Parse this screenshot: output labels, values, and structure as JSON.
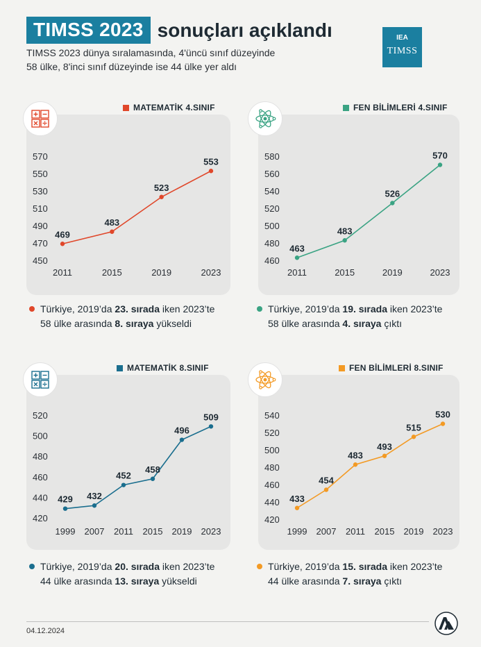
{
  "header": {
    "title_highlight": "TIMSS 2023",
    "title_rest": "sonuçları açıklandı",
    "subtitle_line1": "TIMSS 2023 dünya sıralamasında, 4'üncü sınıf düzeyinde",
    "subtitle_line2": "58 ülke, 8'inci sınıf düzeyinde ise 44 ülke yer aldı",
    "logo_top": "IEA",
    "logo_bottom": "TIMSS"
  },
  "footer": {
    "date": "04.12.2024"
  },
  "panels": [
    {
      "legend": "MATEMATİK 4.SINIF",
      "color": "#e0472a",
      "icon": "math-icon",
      "note": {
        "pre": "Türkiye, 2019’da ",
        "b1": "23. sırada",
        "mid": " iken 2023’te 58 ülke arasında ",
        "b2": "8. sıraya",
        "post": " yükseldi"
      }
    },
    {
      "legend": "FEN BİLİMLERİ 4.SINIF",
      "color": "#3aa383",
      "icon": "atom-icon",
      "note": {
        "pre": "Türkiye, 2019’da ",
        "b1": "19. sırada",
        "mid": " iken 2023’te 58 ülke arasında ",
        "b2": "4. sıraya",
        "post": " çıktı"
      }
    },
    {
      "legend": "MATEMATİK 8.SINIF",
      "color": "#1a6e8e",
      "icon": "math-icon",
      "note": {
        "pre": "Türkiye, 2019’da ",
        "b1": "20. sırada",
        "mid": " iken 2023’te 44 ülke arasında ",
        "b2": "13. sıraya",
        "post": " yükseldi"
      }
    },
    {
      "legend": "FEN BİLİMLERİ 8.SINIF",
      "color": "#f39a24",
      "icon": "atom-icon",
      "note": {
        "pre": "Türkiye, 2019’da ",
        "b1": "15. sırada",
        "mid": " iken 2023’te 44 ülke arasında ",
        "b2": "7. sıraya",
        "post": " çıktı"
      }
    }
  ],
  "chart_data": [
    {
      "type": "line",
      "title": "MATEMATİK 4.SINIF",
      "x": [
        "2011",
        "2015",
        "2019",
        "2023"
      ],
      "values": [
        469,
        483,
        523,
        553
      ],
      "yticks": [
        450,
        470,
        490,
        510,
        530,
        550,
        570
      ],
      "ylim": [
        450,
        570
      ],
      "grid": false
    },
    {
      "type": "line",
      "title": "FEN BİLİMLERİ 4.SINIF",
      "x": [
        "2011",
        "2015",
        "2019",
        "2023"
      ],
      "values": [
        463,
        483,
        526,
        570
      ],
      "yticks": [
        460,
        480,
        500,
        520,
        540,
        560,
        580
      ],
      "ylim": [
        460,
        580
      ],
      "grid": false
    },
    {
      "type": "line",
      "title": "MATEMATİK 8.SINIF",
      "x": [
        "1999",
        "2007",
        "2011",
        "2015",
        "2019",
        "2023"
      ],
      "values": [
        429,
        432,
        452,
        458,
        496,
        509
      ],
      "yticks": [
        420,
        440,
        460,
        480,
        500,
        520
      ],
      "ylim": [
        420,
        520
      ],
      "grid": false
    },
    {
      "type": "line",
      "title": "FEN BİLİMLERİ 8.SINIF",
      "x": [
        "1999",
        "2007",
        "2011",
        "2015",
        "2019",
        "2023"
      ],
      "values": [
        433,
        454,
        483,
        493,
        515,
        530
      ],
      "yticks": [
        420,
        440,
        460,
        480,
        500,
        520,
        540
      ],
      "ylim": [
        420,
        540
      ],
      "grid": false
    }
  ]
}
